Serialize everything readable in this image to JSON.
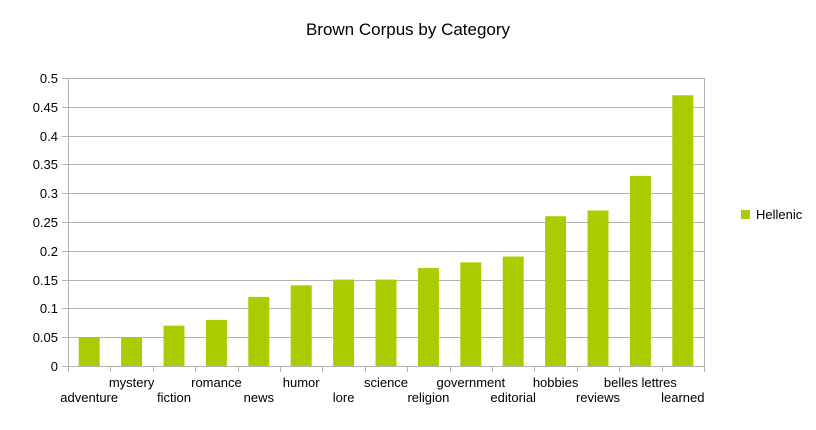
{
  "chart_data": {
    "type": "bar",
    "title": "Brown Corpus by Category",
    "xlabel": "",
    "ylabel": "",
    "categories": [
      "adventure",
      "mystery",
      "fiction",
      "romance",
      "news",
      "humor",
      "lore",
      "science",
      "religion",
      "government",
      "editorial",
      "hobbies",
      "reviews",
      "belles lettres",
      "learned"
    ],
    "series": [
      {
        "name": "Hellenic",
        "color": "#aacc00",
        "values": [
          0.05,
          0.05,
          0.07,
          0.08,
          0.12,
          0.14,
          0.15,
          0.15,
          0.17,
          0.18,
          0.19,
          0.26,
          0.27,
          0.33,
          0.47
        ]
      }
    ],
    "ylim": [
      0,
      0.5
    ],
    "yticks": [
      "0",
      "0.05",
      "0.1",
      "0.15",
      "0.2",
      "0.25",
      "0.3",
      "0.35",
      "0.4",
      "0.45",
      "0.5"
    ],
    "grid": true,
    "legend": "right"
  }
}
